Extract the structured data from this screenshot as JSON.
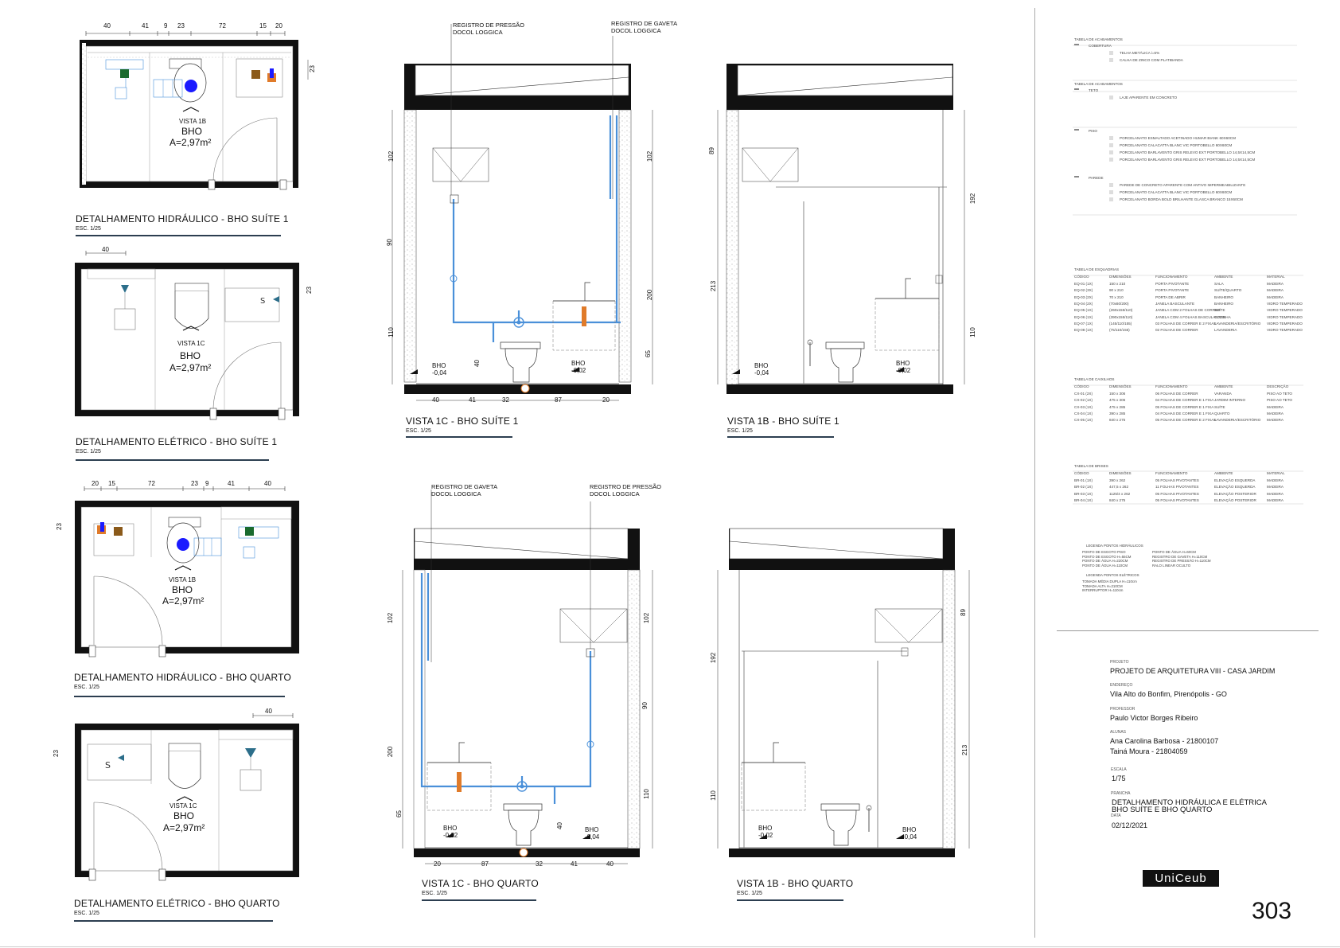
{
  "plans": [
    {
      "title": "DETALHAMENTO HIDRÁULICO - BHO SUÍTE 1",
      "scale": "ESC. 1/25",
      "view": "VISTA 1B",
      "room": "BHO",
      "area": "A=2,97m²",
      "dims_top": [
        "40",
        "41",
        "9",
        "23",
        "72",
        "15",
        "20"
      ],
      "dim_side": "23"
    },
    {
      "title": "DETALHAMENTO ELÉTRICO - BHO SUÍTE 1",
      "scale": "ESC. 1/25",
      "view": "VISTA 1C",
      "room": "BHO",
      "area": "A=2,97m²",
      "dims_top": [
        "40"
      ],
      "dim_side": "23"
    },
    {
      "title": "DETALHAMENTO HIDRÁULICO - BHO QUARTO",
      "scale": "ESC. 1/25",
      "view": "VISTA 1B",
      "room": "BHO",
      "area": "A=2,97m²",
      "dims_top": [
        "20",
        "15",
        "72",
        "23",
        "9",
        "41",
        "40"
      ],
      "dim_side": "23"
    },
    {
      "title": "DETALHAMENTO ELÉTRICO - BHO QUARTO",
      "scale": "ESC. 1/25",
      "view": "VISTA 1C",
      "room": "BHO",
      "area": "A=2,97m²",
      "dims_top": [
        "40"
      ],
      "dim_side": "23"
    }
  ],
  "elevations": [
    {
      "title": "VISTA 1C - BHO SUÍTE 1",
      "scale": "ESC. 1/25",
      "note_left": [
        "REGISTRO DE PRESSÃO",
        "DOCOL LOGGICA"
      ],
      "note_right": [
        "REGISTRO DE GAVETA",
        "DOCOL LOGGICA"
      ],
      "level_left": [
        "BHO",
        "-0,04"
      ],
      "level_right": [
        "BHO",
        "-0,02"
      ],
      "dims_bottom": [
        "40",
        "41",
        "32",
        "87",
        "20"
      ],
      "dims_left": [
        "102",
        "90",
        "110"
      ],
      "dims_right": [
        "102",
        "200",
        "65"
      ],
      "dim_inner": "40"
    },
    {
      "title": "VISTA 1B - BHO SUÍTE 1",
      "scale": "ESC. 1/25",
      "level_left": [
        "BHO",
        "-0,04"
      ],
      "level_right": [
        "BHO",
        "-0,02"
      ],
      "dims_left": [
        "89",
        "213"
      ],
      "dims_right": [
        "192",
        "110"
      ]
    },
    {
      "title": "VISTA 1C - BHO QUARTO",
      "scale": "ESC. 1/25",
      "note_left": [
        "REGISTRO DE GAVETA",
        "DOCOL LOGGICA"
      ],
      "note_right": [
        "REGISTRO DE PRESSÃO",
        "DOCOL LOGGICA"
      ],
      "level_left": [
        "BHO",
        "-0,02"
      ],
      "level_right": [
        "BHO",
        "-0,04"
      ],
      "dims_bottom": [
        "20",
        "87",
        "32",
        "41",
        "40"
      ],
      "dims_left": [
        "102",
        "200",
        "65"
      ],
      "dims_right": [
        "102",
        "90",
        "110"
      ],
      "dim_inner": "40"
    },
    {
      "title": "VISTA 1B - BHO QUARTO",
      "scale": "ESC. 1/25",
      "level_left": [
        "BHO",
        "-0,02"
      ],
      "level_right": [
        "BHO",
        "-0,04"
      ],
      "dims_left": [
        "192",
        "110"
      ],
      "dims_right": [
        "89",
        "213"
      ]
    }
  ],
  "tables": {
    "acab1": {
      "title": "TABELA DE ACABAMENTOS",
      "tag": "COBERTURA",
      "items": [
        "TELHA METÁLICA i=5%",
        "CALHA DE ZINCO COM PLATIBANDA"
      ]
    },
    "acab2": {
      "title": "TABELA DE ACABAMENTOS",
      "tag": "TETO",
      "items": [
        "LAJE APARENTE EM CONCRETO"
      ]
    },
    "piso": {
      "tag": "PISO",
      "items": [
        "PORCELANATO ESMALTADO ACETINADO HUMAR BIANK 60X60CM",
        "PORCELANATO CALACATTA BLANC VIC PORTOBELLO 60X60CM",
        "PORCELANATO BARLAVENTO GRIS RELEVO EXT PORTOBELLO 14,5X14,5CM",
        "PORCELANATO BARLAVENTO GRIS RELEVO EXT PORTOBELLO 14,5X14,5CM"
      ]
    },
    "parede": {
      "tag": "PAREDE",
      "items": [
        "PAREDE DE CONCRETO APARENTE COM ANTIVO IMPERMEABILIZANTE",
        "PORCELANATO CALACATTA BLANC VIC PORTOBELLO 60X60CM",
        "PORCELANATO BORDA BOLD BRILHANTE GLASCA BRANCO 15X60CM"
      ]
    },
    "esquadrias": {
      "title": "TABELA DE ESQUADRIAS",
      "headers": [
        "CÓDIGO",
        "DIMENSÕES",
        "FUNCIONAMENTO",
        "AMBIENTE",
        "MATERIAL"
      ],
      "rows": [
        [
          "EQ-01 (1X)",
          "150 x 210",
          "PORTA PIVOTANTE",
          "SALA",
          "MADEIRA"
        ],
        [
          "EQ-02 (3X)",
          "90 x 210",
          "PORTA PIVOTANTE",
          "SUÍTE/QUARTO",
          "MADEIRA"
        ],
        [
          "EQ-03 (2X)",
          "70 x 210",
          "PORTA DE ABRIR",
          "BANHEIRO",
          "MADEIRA"
        ],
        [
          "EQ-04 (2X)",
          "(70x60/200)",
          "JANELA BASCULANTE",
          "BANHEIRO",
          "VIDRO TEMPERADO"
        ],
        [
          "EQ-05 (1X)",
          "(260x155/110)",
          "JANELA COM 2 FOLHAS DE CORRER",
          "SUÍTE",
          "VIDRO TEMPERADO"
        ],
        [
          "EQ-06 (1X)",
          "(390x155/110)",
          "JANELA COM 4 FOLHAS BASCULANTES",
          "COZINHA",
          "VIDRO TEMPERADO"
        ],
        [
          "EQ-07 (1X)",
          "(145/110/155)",
          "03 FOLHAS DE CORRER E 2 FIXAS",
          "LAVANDERIA/ESCRITÓRIO",
          "VIDRO TEMPERADO"
        ],
        [
          "EQ-08 (1X)",
          "(75/110/155)",
          "02 FOLHAS DE CORRER",
          "LAVANDERIA",
          "VIDRO TEMPERADO"
        ]
      ]
    },
    "caixilhos": {
      "title": "TABELA DE CAIXILHOS",
      "headers": [
        "CÓDIGO",
        "DIMENSÕES",
        "FUNCIONAMENTO",
        "AMBIENTE",
        "DESCRIÇÃO"
      ],
      "rows": [
        [
          "CX-01 (2X)",
          "150 x 306",
          "06 FOLHAS DE CORRER",
          "VARANDA",
          "PISO AO TETO"
        ],
        [
          "CX-02 (1X)",
          "475 x 306",
          "04 FOLHAS DE CORRER E 1 FIXA",
          "JARDIM INTERNO",
          "PISO AO TETO"
        ],
        [
          "CX-03 (1X)",
          "475 x 285",
          "05 FOLHAS DE CORRER E 1 FIXA",
          "SUÍTE",
          "MADEIRA"
        ],
        [
          "CX-04 (1X)",
          "390 x 285",
          "04 FOLHAS DE CORRER E 1 FIXA",
          "QUARTO",
          "MADEIRA"
        ],
        [
          "CX-05 (1X)",
          "840 x 275",
          "05 FOLHAS DE CORRER E 2 FIXAS",
          "LAVANDERIA/ESCRITÓRIO",
          "MADEIRA"
        ]
      ]
    },
    "brises": {
      "title": "TABELA DE BRISES",
      "headers": [
        "CÓDIGO",
        "DIMENSÕES",
        "FUNCIONAMENTO",
        "AMBIENTE",
        "MATERIAL"
      ],
      "rows": [
        [
          "BR-01 (1X)",
          "390 x 262",
          "05 FOLHAS PIVOTANTES",
          "ELEVAÇÃO ESQUERDA",
          "MADEIRA"
        ],
        [
          "BR-02 (1X)",
          "447,5 x 262",
          "11 FOLHAS PIVOTANTES",
          "ELEVAÇÃO ESQUERDA",
          "MADEIRA"
        ],
        [
          "BR-03 (1X)",
          "1125/4 x 262",
          "05 FOLHAS PIVOTANTES",
          "ELEVAÇÃO POSTERIOR",
          "MADEIRA"
        ],
        [
          "BR-04 (1X)",
          "840 x 275",
          "05 FOLHAS PIVOTANTES",
          "ELEVAÇÃO POSTERIOR",
          "MADEIRA"
        ]
      ]
    }
  },
  "legend": {
    "hydro_title": "LEGENDA PONTOS HIDRÁULICOS",
    "hydro_col1": [
      "PONTO DE ESGOTO PISO",
      "PONTO DE ESGOTO H=55CM",
      "PONTO DE ÁGUA H=220CM",
      "PONTO DE ÁGUA H=110CM"
    ],
    "hydro_col2": [
      "PONTO DE ÁGUA H=60CM",
      "REGISTRO DE GAVETA H=110CM",
      "REGISTRO DE PRESSÃO H=110CM",
      "RALO LINEAR OCULTO"
    ],
    "elec_title": "LEGENDA PONTOS ELÉTRICOS",
    "elec_items": [
      "TOMADA MÉDIA DUPLA H=110cm",
      "TOMADA ALTA H=210CM",
      "INTERRUPTOR H=110cm"
    ]
  },
  "titleblock": {
    "project_label": "PROJETO",
    "project": "PROJETO DE ARQUITETURA VIII - CASA JARDIM",
    "address_label": "ENDEREÇO",
    "address": "Vila Alto do Bonfim, Pirenópolis - GO",
    "professor_label": "PROFESSOR",
    "professor": "Paulo Victor Borges Ribeiro",
    "students_label": "ALUNAS",
    "student1": "Ana Carolina Barbosa - 21800107",
    "student2": "Tainá Moura - 21804059",
    "scale_label": "ESCALA",
    "scale": "1/75",
    "sheet_label": "PRANCHA",
    "sheet1": "DETALHAMENTO HIDRÁULICA E ELÉTRICA",
    "sheet2": "BHO SUÍTE E BHO QUARTO",
    "date_label": "DATA",
    "date": "02/12/2021",
    "logo": "UniCeub",
    "number": "303"
  },
  "colors": {
    "water": "#4a90d9",
    "hot": "#e07b2a",
    "navy": "#2c3e50",
    "green": "#1a6b2e",
    "brown": "#8b5a1a",
    "dot": "#1a1aff"
  }
}
